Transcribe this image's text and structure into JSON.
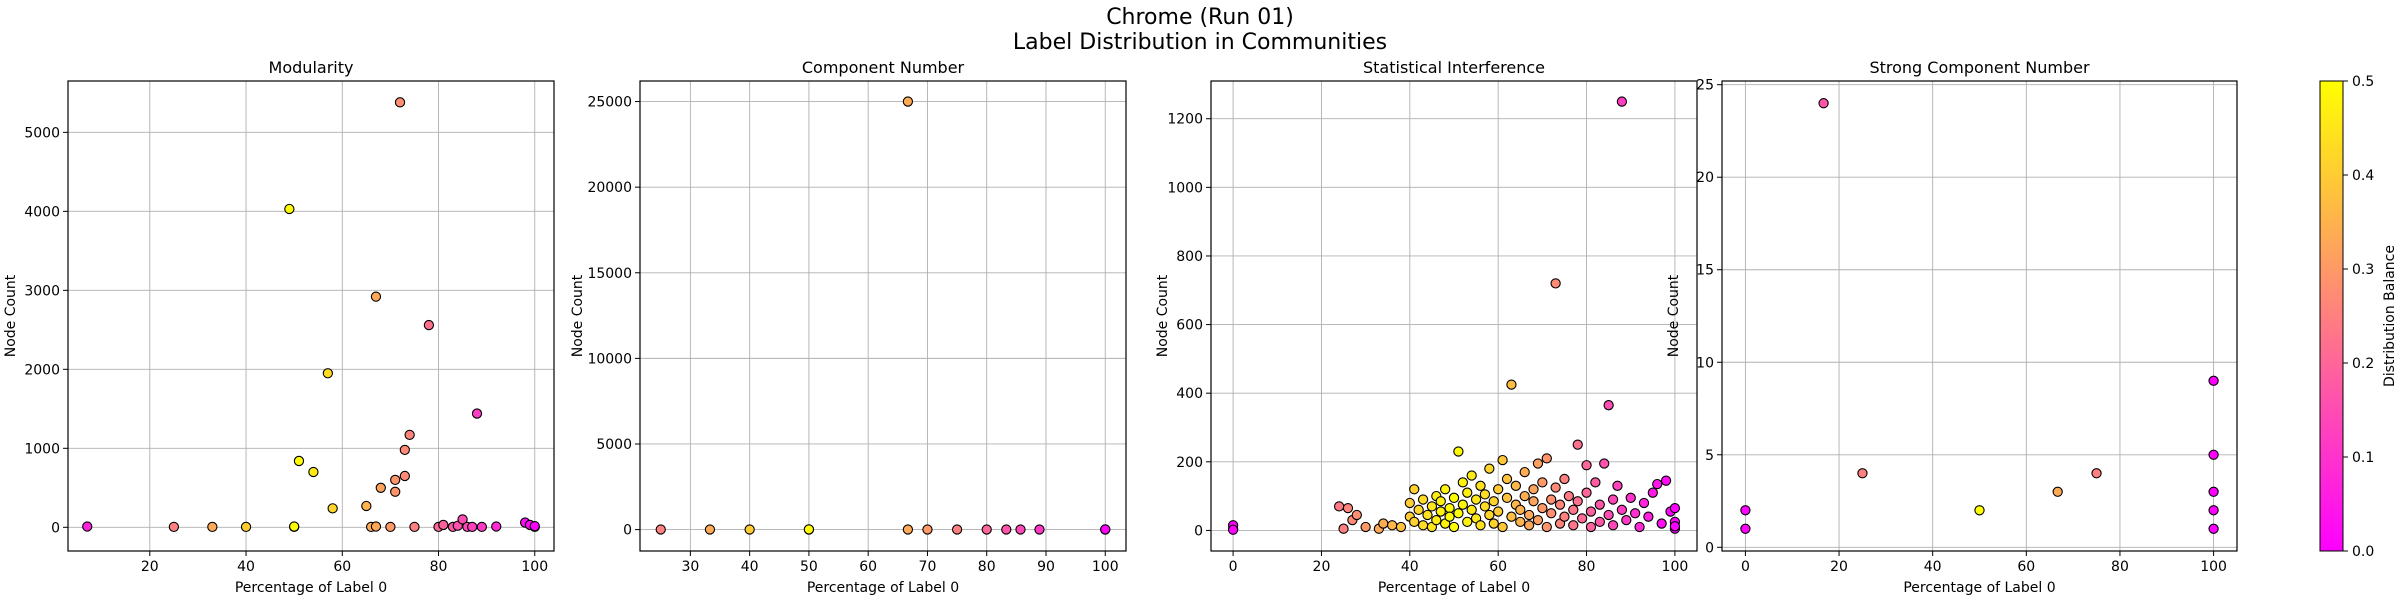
{
  "figure": {
    "title_line1": "Chrome (Run 01)",
    "title_line2": "Label Distribution in Communities"
  },
  "colorbar": {
    "label": "Distribution Balance",
    "ticks": [
      "0.0",
      "0.1",
      "0.2",
      "0.3",
      "0.4",
      "0.5"
    ],
    "range": [
      0,
      0.5
    ],
    "colormap": "spring",
    "color_low": "#ff00ff",
    "color_high": "#ffff00"
  },
  "chart_data": [
    {
      "type": "scatter",
      "title": "Modularity",
      "xlabel": "Percentage of Label 0",
      "ylabel": "Node Count",
      "xlim": [
        3,
        104
      ],
      "ylim": [
        -300,
        5650
      ],
      "xticks": [
        20,
        40,
        60,
        80,
        100
      ],
      "yticks": [
        0,
        1000,
        2000,
        3000,
        4000,
        5000
      ],
      "grid": true,
      "points": [
        {
          "x": 7,
          "y": 10
        },
        {
          "x": 25,
          "y": 5
        },
        {
          "x": 33,
          "y": 5
        },
        {
          "x": 40,
          "y": 5
        },
        {
          "x": 49,
          "y": 4030
        },
        {
          "x": 50,
          "y": 5
        },
        {
          "x": 50,
          "y": 10
        },
        {
          "x": 51,
          "y": 840
        },
        {
          "x": 54,
          "y": 700
        },
        {
          "x": 57,
          "y": 1950
        },
        {
          "x": 58,
          "y": 240
        },
        {
          "x": 65,
          "y": 270
        },
        {
          "x": 66,
          "y": 5
        },
        {
          "x": 67,
          "y": 2920
        },
        {
          "x": 67,
          "y": 10
        },
        {
          "x": 68,
          "y": 500
        },
        {
          "x": 70,
          "y": 5
        },
        {
          "x": 71,
          "y": 450
        },
        {
          "x": 71,
          "y": 600
        },
        {
          "x": 72,
          "y": 5380
        },
        {
          "x": 73,
          "y": 980
        },
        {
          "x": 74,
          "y": 1170
        },
        {
          "x": 73,
          "y": 650
        },
        {
          "x": 75,
          "y": 5
        },
        {
          "x": 78,
          "y": 2560
        },
        {
          "x": 80,
          "y": 5
        },
        {
          "x": 81,
          "y": 30
        },
        {
          "x": 83,
          "y": 5
        },
        {
          "x": 84,
          "y": 20
        },
        {
          "x": 85,
          "y": 100
        },
        {
          "x": 86,
          "y": 5
        },
        {
          "x": 87,
          "y": 5
        },
        {
          "x": 88,
          "y": 1440
        },
        {
          "x": 89,
          "y": 5
        },
        {
          "x": 92,
          "y": 10
        },
        {
          "x": 98,
          "y": 60
        },
        {
          "x": 99,
          "y": 30
        },
        {
          "x": 100,
          "y": 5
        },
        {
          "x": 100,
          "y": 15
        }
      ]
    },
    {
      "type": "scatter",
      "title": "Component Number",
      "xlabel": "Percentage of Label 0",
      "ylabel": "Node Count",
      "xlim": [
        21.5,
        103.5
      ],
      "ylim": [
        -1250,
        26200
      ],
      "xticks": [
        30,
        40,
        50,
        60,
        70,
        80,
        90,
        100
      ],
      "yticks": [
        0,
        5000,
        10000,
        15000,
        20000,
        25000
      ],
      "grid": true,
      "points": [
        {
          "x": 25,
          "y": 5
        },
        {
          "x": 33.3,
          "y": 5
        },
        {
          "x": 40,
          "y": 5
        },
        {
          "x": 50,
          "y": 5
        },
        {
          "x": 50,
          "y": 10
        },
        {
          "x": 66.7,
          "y": 25000
        },
        {
          "x": 66.7,
          "y": 5
        },
        {
          "x": 70,
          "y": 5
        },
        {
          "x": 75,
          "y": 5
        },
        {
          "x": 80,
          "y": 5
        },
        {
          "x": 83.3,
          "y": 5
        },
        {
          "x": 85.7,
          "y": 5
        },
        {
          "x": 88.9,
          "y": 5
        },
        {
          "x": 100,
          "y": 5
        },
        {
          "x": 100,
          "y": 10
        }
      ]
    },
    {
      "type": "scatter",
      "title": "Statistical Interference",
      "xlabel": "Percentage of Label 0",
      "ylabel": "Node Count",
      "xlim": [
        -5,
        105
      ],
      "ylim": [
        -60,
        1310
      ],
      "xticks": [
        0,
        20,
        40,
        60,
        80,
        100
      ],
      "yticks": [
        0,
        200,
        400,
        600,
        800,
        1000,
        1200
      ],
      "grid": true,
      "points": [
        {
          "x": 0,
          "y": 5
        },
        {
          "x": 0,
          "y": 15
        },
        {
          "x": 0,
          "y": 2
        },
        {
          "x": 24,
          "y": 70
        },
        {
          "x": 25,
          "y": 5
        },
        {
          "x": 26,
          "y": 65
        },
        {
          "x": 27,
          "y": 30
        },
        {
          "x": 28,
          "y": 45
        },
        {
          "x": 30,
          "y": 10
        },
        {
          "x": 33,
          "y": 5
        },
        {
          "x": 34,
          "y": 20
        },
        {
          "x": 36,
          "y": 15
        },
        {
          "x": 38,
          "y": 10
        },
        {
          "x": 40,
          "y": 40
        },
        {
          "x": 40,
          "y": 80
        },
        {
          "x": 41,
          "y": 120
        },
        {
          "x": 41,
          "y": 25
        },
        {
          "x": 42,
          "y": 60
        },
        {
          "x": 43,
          "y": 90
        },
        {
          "x": 43,
          "y": 15
        },
        {
          "x": 44,
          "y": 45
        },
        {
          "x": 45,
          "y": 70
        },
        {
          "x": 45,
          "y": 10
        },
        {
          "x": 46,
          "y": 100
        },
        {
          "x": 46,
          "y": 30
        },
        {
          "x": 47,
          "y": 55
        },
        {
          "x": 47,
          "y": 85
        },
        {
          "x": 48,
          "y": 20
        },
        {
          "x": 48,
          "y": 120
        },
        {
          "x": 49,
          "y": 65
        },
        {
          "x": 49,
          "y": 40
        },
        {
          "x": 50,
          "y": 95
        },
        {
          "x": 50,
          "y": 10
        },
        {
          "x": 51,
          "y": 230
        },
        {
          "x": 51,
          "y": 50
        },
        {
          "x": 52,
          "y": 140
        },
        {
          "x": 52,
          "y": 75
        },
        {
          "x": 53,
          "y": 25
        },
        {
          "x": 53,
          "y": 110
        },
        {
          "x": 54,
          "y": 60
        },
        {
          "x": 54,
          "y": 160
        },
        {
          "x": 55,
          "y": 35
        },
        {
          "x": 55,
          "y": 90
        },
        {
          "x": 56,
          "y": 130
        },
        {
          "x": 56,
          "y": 15
        },
        {
          "x": 57,
          "y": 70
        },
        {
          "x": 57,
          "y": 105
        },
        {
          "x": 58,
          "y": 45
        },
        {
          "x": 58,
          "y": 180
        },
        {
          "x": 59,
          "y": 20
        },
        {
          "x": 59,
          "y": 85
        },
        {
          "x": 60,
          "y": 120
        },
        {
          "x": 60,
          "y": 55
        },
        {
          "x": 61,
          "y": 205
        },
        {
          "x": 61,
          "y": 10
        },
        {
          "x": 62,
          "y": 95
        },
        {
          "x": 62,
          "y": 150
        },
        {
          "x": 63,
          "y": 425
        },
        {
          "x": 63,
          "y": 40
        },
        {
          "x": 64,
          "y": 75
        },
        {
          "x": 64,
          "y": 130
        },
        {
          "x": 65,
          "y": 25
        },
        {
          "x": 65,
          "y": 60
        },
        {
          "x": 66,
          "y": 100
        },
        {
          "x": 66,
          "y": 170
        },
        {
          "x": 67,
          "y": 45
        },
        {
          "x": 67,
          "y": 15
        },
        {
          "x": 68,
          "y": 85
        },
        {
          "x": 68,
          "y": 120
        },
        {
          "x": 69,
          "y": 195
        },
        {
          "x": 69,
          "y": 30
        },
        {
          "x": 70,
          "y": 65
        },
        {
          "x": 70,
          "y": 140
        },
        {
          "x": 71,
          "y": 210
        },
        {
          "x": 71,
          "y": 10
        },
        {
          "x": 72,
          "y": 90
        },
        {
          "x": 72,
          "y": 50
        },
        {
          "x": 73,
          "y": 720
        },
        {
          "x": 73,
          "y": 125
        },
        {
          "x": 74,
          "y": 20
        },
        {
          "x": 74,
          "y": 75
        },
        {
          "x": 75,
          "y": 150
        },
        {
          "x": 75,
          "y": 40
        },
        {
          "x": 76,
          "y": 100
        },
        {
          "x": 77,
          "y": 60
        },
        {
          "x": 77,
          "y": 15
        },
        {
          "x": 78,
          "y": 250
        },
        {
          "x": 78,
          "y": 85
        },
        {
          "x": 79,
          "y": 35
        },
        {
          "x": 80,
          "y": 190
        },
        {
          "x": 80,
          "y": 110
        },
        {
          "x": 81,
          "y": 55
        },
        {
          "x": 81,
          "y": 10
        },
        {
          "x": 82,
          "y": 140
        },
        {
          "x": 83,
          "y": 75
        },
        {
          "x": 83,
          "y": 25
        },
        {
          "x": 84,
          "y": 195
        },
        {
          "x": 85,
          "y": 365
        },
        {
          "x": 85,
          "y": 45
        },
        {
          "x": 86,
          "y": 90
        },
        {
          "x": 86,
          "y": 15
        },
        {
          "x": 87,
          "y": 130
        },
        {
          "x": 88,
          "y": 1250
        },
        {
          "x": 88,
          "y": 60
        },
        {
          "x": 89,
          "y": 30
        },
        {
          "x": 90,
          "y": 95
        },
        {
          "x": 91,
          "y": 50
        },
        {
          "x": 92,
          "y": 10
        },
        {
          "x": 93,
          "y": 80
        },
        {
          "x": 94,
          "y": 40
        },
        {
          "x": 95,
          "y": 110
        },
        {
          "x": 96,
          "y": 135
        },
        {
          "x": 97,
          "y": 20
        },
        {
          "x": 98,
          "y": 145
        },
        {
          "x": 99,
          "y": 55
        },
        {
          "x": 100,
          "y": 65
        },
        {
          "x": 100,
          "y": 25
        },
        {
          "x": 100,
          "y": 5
        },
        {
          "x": 100,
          "y": 12
        }
      ]
    },
    {
      "type": "scatter",
      "title": "Strong Component Number",
      "xlabel": "Percentage of Label 0",
      "ylabel": "Node Count",
      "xlim": [
        -5,
        105
      ],
      "ylim": [
        -0.2,
        25.2
      ],
      "xticks": [
        0,
        20,
        40,
        60,
        80,
        100
      ],
      "yticks": [
        0,
        5,
        10,
        15,
        20,
        25
      ],
      "grid": true,
      "points": [
        {
          "x": 0,
          "y": 2
        },
        {
          "x": 0,
          "y": 1
        },
        {
          "x": 16.7,
          "y": 24
        },
        {
          "x": 25,
          "y": 4
        },
        {
          "x": 50,
          "y": 2
        },
        {
          "x": 66.7,
          "y": 3
        },
        {
          "x": 75,
          "y": 4
        },
        {
          "x": 100,
          "y": 9
        },
        {
          "x": 100,
          "y": 5
        },
        {
          "x": 100,
          "y": 3
        },
        {
          "x": 100,
          "y": 2
        },
        {
          "x": 100,
          "y": 1
        }
      ]
    }
  ]
}
